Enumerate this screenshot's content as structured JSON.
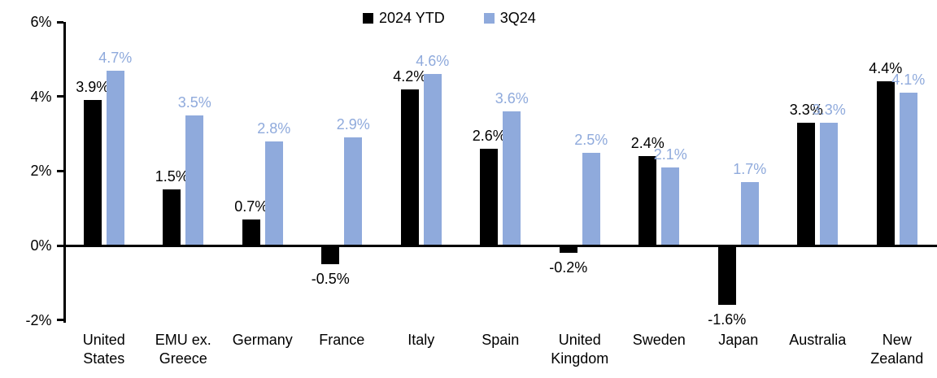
{
  "chart_data": {
    "type": "bar",
    "title": "",
    "categories": [
      "United\nStates",
      "EMU ex.\nGreece",
      "Germany",
      "France",
      "Italy",
      "Spain",
      "United\nKingdom",
      "Sweden",
      "Japan",
      "Australia",
      "New\nZealand"
    ],
    "series": [
      {
        "name": "2024 YTD",
        "color": "#000000",
        "values": [
          3.9,
          1.5,
          0.7,
          -0.5,
          4.2,
          2.6,
          -0.2,
          2.4,
          -1.6,
          3.3,
          4.4
        ]
      },
      {
        "name": "3Q24",
        "color": "#8FAADC",
        "values": [
          4.7,
          3.5,
          2.8,
          2.9,
          4.6,
          3.6,
          2.5,
          2.1,
          1.7,
          3.3,
          4.1
        ]
      }
    ],
    "data_labels": {
      "series_0": [
        "3.9%",
        "1.5%",
        "0.7%",
        "-0.5%",
        "4.2%",
        "2.6%",
        "-0.2%",
        "2.4%",
        "-1.6%",
        "3.3%",
        "4.4%"
      ],
      "series_1": [
        "4.7%",
        "3.5%",
        "2.8%",
        "2.9%",
        "4.6%",
        "3.6%",
        "2.5%",
        "2.1%",
        "1.7%",
        "3.3%",
        "4.1%"
      ]
    },
    "y_axis": {
      "min": -2,
      "max": 6,
      "tick_values": [
        6,
        4,
        2,
        0,
        -2
      ],
      "tick_labels": [
        "6%",
        "4%",
        "2%",
        "0%",
        "-2%"
      ]
    },
    "value_suffix": "%",
    "legend": {
      "position": "top-center"
    },
    "grid": false,
    "background": "#FFFFFF",
    "axis_color": "#000000"
  }
}
